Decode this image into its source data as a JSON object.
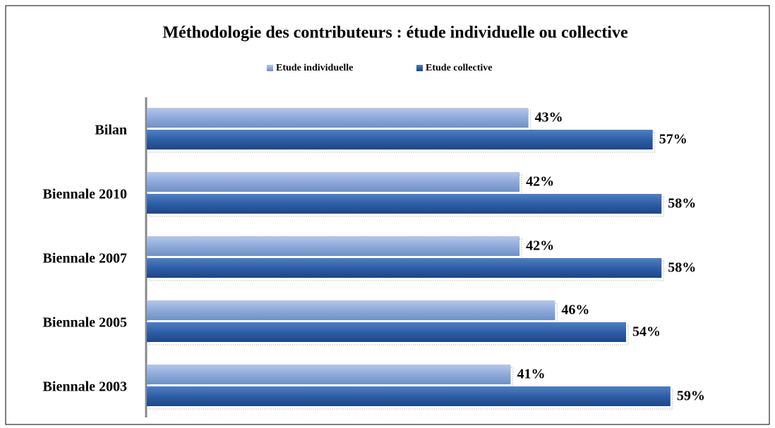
{
  "chart_data": {
    "type": "bar",
    "orientation": "horizontal",
    "title": "Méthodologie des contributeurs :  étude individuelle ou collective",
    "categories": [
      "Bilan",
      "Biennale 2010",
      "Biennale 2007",
      "Biennale 2005",
      "Biennale 2003"
    ],
    "series": [
      {
        "name": "Etude individuelle",
        "color": "#8eaadb",
        "values": [
          43,
          42,
          42,
          46,
          41
        ],
        "value_labels": [
          "43%",
          "42%",
          "42%",
          "46%",
          "41%"
        ]
      },
      {
        "name": "Etude collective",
        "color": "#2e5ea6",
        "values": [
          57,
          58,
          58,
          54,
          59
        ],
        "value_labels": [
          "57%",
          "58%",
          "58%",
          "54%",
          "59%"
        ]
      }
    ],
    "xlim": [
      0,
      68
    ],
    "legend": "top"
  }
}
